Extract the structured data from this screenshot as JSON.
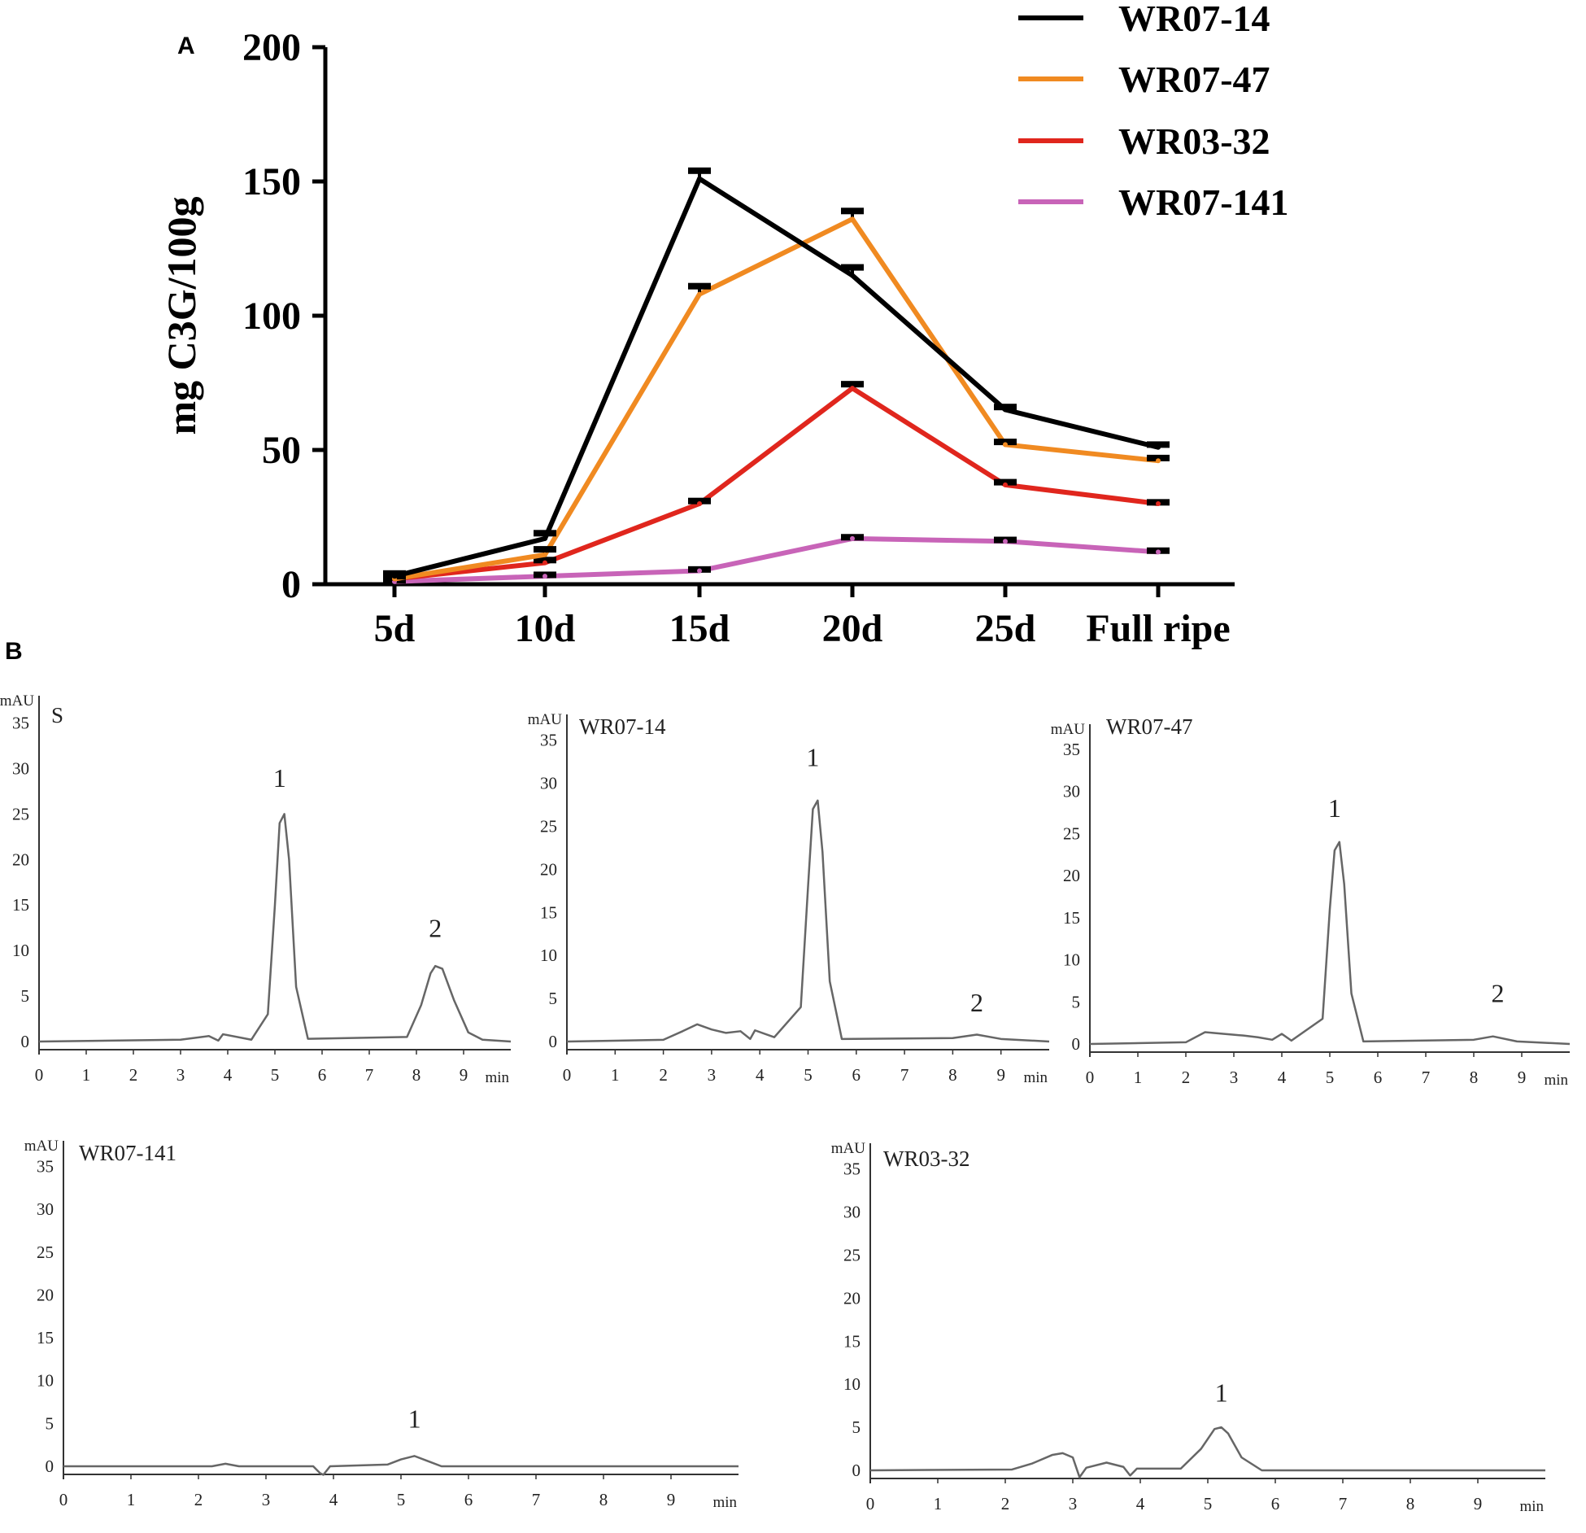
{
  "panels": {
    "a_label": "A",
    "b_label": "B"
  },
  "chart_data": [
    {
      "id": "A",
      "type": "line",
      "title": "",
      "xlabel": "",
      "ylabel": "mg C3G/100g",
      "categories": [
        "5d",
        "10d",
        "15d",
        "20d",
        "25d",
        "Full ripe"
      ],
      "ylim": [
        0,
        200
      ],
      "yticks": [
        0,
        50,
        100,
        150,
        200
      ],
      "legend_position": "top-right",
      "series": [
        {
          "name": "WR07-14",
          "color": "#000000",
          "values": [
            3,
            17,
            151,
            115,
            65,
            51
          ],
          "errors": [
            1,
            2,
            3,
            3,
            1,
            1
          ]
        },
        {
          "name": "WR07-47",
          "color": "#f08a21",
          "values": [
            2,
            11,
            108,
            136,
            52,
            46
          ],
          "errors": [
            1,
            2,
            3,
            3,
            1,
            1
          ]
        },
        {
          "name": "WR03-32",
          "color": "#e0261d",
          "values": [
            2,
            8,
            30,
            73,
            37,
            30
          ],
          "errors": [
            0.5,
            1,
            1,
            1.5,
            1,
            0.5
          ]
        },
        {
          "name": "WR07-141",
          "color": "#c864b8",
          "values": [
            1,
            3,
            5,
            17,
            16,
            12
          ],
          "errors": [
            0.5,
            0.5,
            0.5,
            0.5,
            0.5,
            0.5
          ]
        }
      ]
    },
    {
      "id": "S",
      "type": "line",
      "title": "S",
      "xlabel": "min",
      "ylabel": "mAU",
      "xlim": [
        0,
        10
      ],
      "ylim": [
        0,
        38
      ],
      "xticks": [
        0,
        1,
        2,
        3,
        4,
        5,
        6,
        7,
        8,
        9
      ],
      "yticks": [
        0,
        5,
        10,
        15,
        20,
        25,
        30,
        35
      ],
      "x": [
        0,
        3.0,
        3.6,
        3.8,
        3.9,
        4.5,
        4.85,
        5.0,
        5.1,
        5.2,
        5.3,
        5.45,
        5.7,
        7.8,
        8.1,
        8.3,
        8.4,
        8.55,
        8.8,
        9.1,
        9.4,
        10
      ],
      "y": [
        0,
        0.2,
        0.6,
        0.1,
        0.8,
        0.2,
        3,
        15,
        24,
        25,
        20,
        6,
        0.3,
        0.5,
        4,
        7.5,
        8.3,
        8,
        4.5,
        1,
        0.2,
        0
      ],
      "peaks": [
        {
          "label": "1",
          "x": 5.1,
          "y": 28
        },
        {
          "label": "2",
          "x": 8.4,
          "y": 11.5
        }
      ]
    },
    {
      "id": "WR07-14",
      "type": "line",
      "title": "WR07-14",
      "xlabel": "min",
      "ylabel": "mAU",
      "xlim": [
        0,
        10
      ],
      "ylim": [
        0,
        38
      ],
      "xticks": [
        0,
        1,
        2,
        3,
        4,
        5,
        6,
        7,
        8,
        9
      ],
      "yticks": [
        0,
        5,
        10,
        15,
        20,
        25,
        30,
        35
      ],
      "x": [
        0,
        2.0,
        2.4,
        2.7,
        3.0,
        3.3,
        3.6,
        3.8,
        3.9,
        4.3,
        4.85,
        5.0,
        5.1,
        5.2,
        5.3,
        5.45,
        5.7,
        8.0,
        8.5,
        9.0,
        10
      ],
      "y": [
        0,
        0.2,
        1.2,
        2,
        1.4,
        1,
        1.2,
        0.3,
        1.3,
        0.5,
        4,
        18,
        27,
        28,
        22,
        7,
        0.3,
        0.4,
        0.8,
        0.3,
        0
      ],
      "peaks": [
        {
          "label": "1",
          "x": 5.1,
          "y": 32
        },
        {
          "label": "2",
          "x": 8.5,
          "y": 3.5
        }
      ]
    },
    {
      "id": "WR07-47",
      "type": "line",
      "title": "WR07-47",
      "xlabel": "min",
      "ylabel": "mAU",
      "xlim": [
        0,
        10
      ],
      "ylim": [
        0,
        38
      ],
      "xticks": [
        0,
        1,
        2,
        3,
        4,
        5,
        6,
        7,
        8,
        9
      ],
      "yticks": [
        0,
        5,
        10,
        15,
        20,
        25,
        30,
        35
      ],
      "x": [
        0,
        2.0,
        2.4,
        2.8,
        3.2,
        3.5,
        3.8,
        4.0,
        4.2,
        4.85,
        5.0,
        5.1,
        5.2,
        5.3,
        5.45,
        5.7,
        8.0,
        8.4,
        8.9,
        10
      ],
      "y": [
        0,
        0.2,
        1.4,
        1.2,
        1,
        0.8,
        0.5,
        1.2,
        0.4,
        3,
        16,
        23,
        24,
        19,
        6,
        0.3,
        0.5,
        0.9,
        0.3,
        0
      ],
      "peaks": [
        {
          "label": "1",
          "x": 5.1,
          "y": 27
        },
        {
          "label": "2",
          "x": 8.5,
          "y": 5
        }
      ]
    },
    {
      "id": "WR07-141",
      "type": "line",
      "title": "WR07-141",
      "xlabel": "min",
      "ylabel": "mAU",
      "xlim": [
        0,
        10
      ],
      "ylim": [
        0,
        38
      ],
      "xticks": [
        0,
        1,
        2,
        3,
        4,
        5,
        6,
        7,
        8,
        9
      ],
      "yticks": [
        0,
        5,
        10,
        15,
        20,
        25,
        30,
        35
      ],
      "x": [
        0,
        2.2,
        2.4,
        2.6,
        3.7,
        3.8,
        3.85,
        3.95,
        4.8,
        5.0,
        5.2,
        5.4,
        5.6,
        10
      ],
      "y": [
        0,
        0,
        0.3,
        0,
        0,
        -0.8,
        -1,
        0,
        0.2,
        0.8,
        1.2,
        0.6,
        0,
        0
      ],
      "peaks": [
        {
          "label": "1",
          "x": 5.2,
          "y": 4.5
        }
      ]
    },
    {
      "id": "WR03-32",
      "type": "line",
      "title": "WR03-32",
      "xlabel": "min",
      "ylabel": "mAU",
      "xlim": [
        0,
        10
      ],
      "ylim": [
        0,
        38
      ],
      "xticks": [
        0,
        1,
        2,
        3,
        4,
        5,
        6,
        7,
        8,
        9
      ],
      "yticks": [
        0,
        5,
        10,
        15,
        20,
        25,
        30,
        35
      ],
      "x": [
        0,
        2.1,
        2.4,
        2.7,
        2.85,
        3.0,
        3.1,
        3.2,
        3.5,
        3.75,
        3.85,
        3.95,
        4.6,
        4.9,
        5.1,
        5.2,
        5.3,
        5.5,
        5.8,
        10
      ],
      "y": [
        0,
        0.1,
        0.8,
        1.8,
        2,
        1.5,
        -0.8,
        0.3,
        0.9,
        0.4,
        -0.6,
        0.2,
        0.2,
        2.5,
        4.8,
        5,
        4.3,
        1.5,
        0,
        0
      ],
      "peaks": [
        {
          "label": "1",
          "x": 5.2,
          "y": 8
        }
      ]
    }
  ]
}
